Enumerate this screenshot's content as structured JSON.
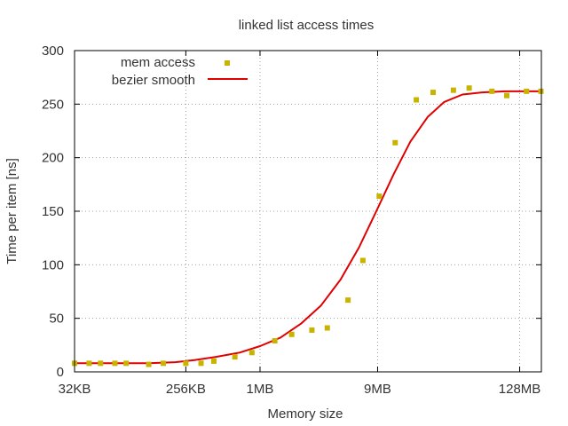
{
  "chart_data": {
    "type": "scatter",
    "title": "linked list access times",
    "xlabel": "Memory size",
    "ylabel": "Time per item [ns]",
    "x_scale": "log2",
    "xlim": [
      32,
      196608
    ],
    "ylim": [
      0,
      300
    ],
    "x_ticks": [
      {
        "value": 32,
        "label": "32KB"
      },
      {
        "value": 256,
        "label": "256KB"
      },
      {
        "value": 1024,
        "label": "1MB"
      },
      {
        "value": 9216,
        "label": "9MB"
      },
      {
        "value": 131072,
        "label": "128MB"
      }
    ],
    "y_ticks": [
      0,
      50,
      100,
      150,
      200,
      250,
      300
    ],
    "grid": true,
    "legend": "top-left",
    "series": [
      {
        "name": "mem access",
        "style": "points",
        "color": "#c8b400",
        "points": [
          [
            32,
            8
          ],
          [
            42,
            8
          ],
          [
            52,
            8
          ],
          [
            68,
            8
          ],
          [
            84,
            8
          ],
          [
            128,
            7
          ],
          [
            168,
            8
          ],
          [
            256,
            8
          ],
          [
            340,
            8
          ],
          [
            432,
            10
          ],
          [
            640,
            14
          ],
          [
            880,
            18
          ],
          [
            1350,
            29
          ],
          [
            1850,
            35
          ],
          [
            2700,
            39
          ],
          [
            3600,
            41
          ],
          [
            5300,
            67
          ],
          [
            7000,
            104
          ],
          [
            9500,
            164
          ],
          [
            12800,
            214
          ],
          [
            19000,
            254
          ],
          [
            26000,
            261
          ],
          [
            38000,
            263
          ],
          [
            51000,
            265
          ],
          [
            78000,
            262
          ],
          [
            103000,
            258
          ],
          [
            149000,
            262
          ],
          [
            195000,
            262
          ]
        ]
      },
      {
        "name": "bezier smooth",
        "style": "line",
        "color": "#e00000",
        "points": [
          [
            32,
            8
          ],
          [
            128,
            8
          ],
          [
            210,
            9
          ],
          [
            300,
            11
          ],
          [
            450,
            14
          ],
          [
            700,
            18
          ],
          [
            1024,
            24
          ],
          [
            1500,
            32
          ],
          [
            2200,
            45
          ],
          [
            3200,
            62
          ],
          [
            4600,
            86
          ],
          [
            6500,
            116
          ],
          [
            9000,
            150
          ],
          [
            12500,
            185
          ],
          [
            17000,
            215
          ],
          [
            23500,
            238
          ],
          [
            32000,
            252
          ],
          [
            45000,
            259
          ],
          [
            65000,
            261
          ],
          [
            100000,
            262
          ],
          [
            196000,
            262
          ]
        ]
      }
    ]
  }
}
